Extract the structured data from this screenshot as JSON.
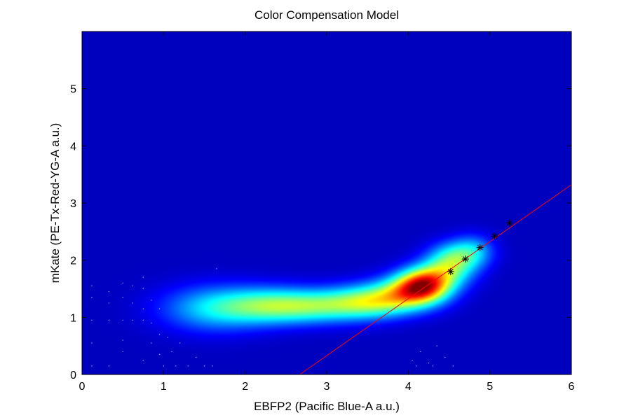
{
  "chart_data": {
    "type": "heatmap",
    "title": "Color Compensation Model",
    "xlabel": "EBFP2 (Pacific Blue-A a.u.)",
    "ylabel": "mKate (PE-Tx-Red-YG-A a.u.)",
    "xlim": [
      0,
      6
    ],
    "ylim": [
      0,
      6
    ],
    "x_ticks": [
      "0",
      "1",
      "2",
      "3",
      "4",
      "5",
      "6"
    ],
    "y_ticks": [
      "0",
      "1",
      "2",
      "3",
      "4",
      "5"
    ],
    "grid": false,
    "legend": false,
    "colormap": "jet",
    "background_color": "#00008f",
    "density_blobs": [
      {
        "x": 1.6,
        "y": 1.15,
        "sx": 0.45,
        "sy": 0.28,
        "w": 0.38
      },
      {
        "x": 2.3,
        "y": 1.2,
        "sx": 0.45,
        "sy": 0.22,
        "w": 0.48
      },
      {
        "x": 3.0,
        "y": 1.2,
        "sx": 0.5,
        "sy": 0.2,
        "w": 0.5
      },
      {
        "x": 3.6,
        "y": 1.3,
        "sx": 0.35,
        "sy": 0.2,
        "w": 0.55
      },
      {
        "x": 4.05,
        "y": 1.45,
        "sx": 0.28,
        "sy": 0.2,
        "w": 0.7
      },
      {
        "x": 4.2,
        "y": 1.6,
        "sx": 0.22,
        "sy": 0.2,
        "w": 0.85
      },
      {
        "x": 4.5,
        "y": 1.85,
        "sx": 0.22,
        "sy": 0.22,
        "w": 0.55
      },
      {
        "x": 4.8,
        "y": 2.15,
        "sx": 0.18,
        "sy": 0.2,
        "w": 0.35
      },
      {
        "x": 4.55,
        "y": 2.1,
        "sx": 0.2,
        "sy": 0.18,
        "w": 0.25
      }
    ],
    "fit_line": {
      "color": "#ff0000",
      "points": [
        [
          2.67,
          0.0
        ],
        [
          6.0,
          3.32
        ]
      ]
    },
    "bin_markers": {
      "marker": "asterisk",
      "color": "#000000",
      "points": [
        [
          4.52,
          1.8
        ],
        [
          4.7,
          2.02
        ],
        [
          4.88,
          2.22
        ],
        [
          5.06,
          2.42
        ],
        [
          5.24,
          2.65
        ]
      ]
    },
    "sparse_points": [
      [
        0.12,
        0.15
      ],
      [
        0.12,
        0.55
      ],
      [
        0.12,
        0.95
      ],
      [
        0.12,
        1.35
      ],
      [
        0.12,
        1.55
      ],
      [
        0.33,
        0.15
      ],
      [
        0.33,
        0.95
      ],
      [
        0.33,
        1.25
      ],
      [
        0.33,
        1.45
      ],
      [
        0.5,
        0.4
      ],
      [
        0.5,
        0.6
      ],
      [
        0.5,
        0.95
      ],
      [
        0.5,
        1.35
      ],
      [
        0.5,
        1.6
      ],
      [
        0.62,
        0.95
      ],
      [
        0.62,
        1.25
      ],
      [
        0.62,
        1.55
      ],
      [
        0.75,
        0.25
      ],
      [
        0.75,
        0.95
      ],
      [
        0.75,
        1.15
      ],
      [
        0.75,
        1.5
      ],
      [
        0.75,
        1.7
      ],
      [
        0.85,
        0.55
      ],
      [
        0.85,
        0.9
      ],
      [
        0.85,
        1.3
      ],
      [
        0.95,
        0.35
      ],
      [
        0.95,
        0.7
      ],
      [
        0.95,
        1.15
      ],
      [
        1.0,
        0.15
      ],
      [
        1.05,
        0.65
      ],
      [
        1.1,
        0.4
      ],
      [
        1.15,
        0.15
      ],
      [
        1.2,
        0.55
      ],
      [
        1.3,
        0.15
      ],
      [
        1.4,
        0.3
      ],
      [
        1.5,
        0.15
      ],
      [
        1.6,
        0.15
      ],
      [
        1.65,
        1.85
      ],
      [
        4.05,
        0.25
      ],
      [
        4.15,
        0.4
      ],
      [
        4.25,
        0.2
      ],
      [
        4.35,
        0.5
      ],
      [
        4.45,
        0.3
      ],
      [
        4.3,
        0.15
      ],
      [
        4.1,
        0.15
      ],
      [
        4.55,
        0.15
      ]
    ]
  }
}
